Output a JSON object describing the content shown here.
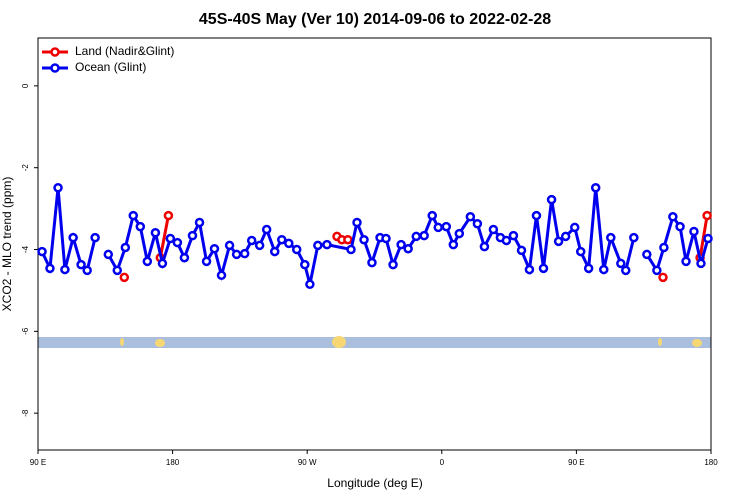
{
  "chart_data": {
    "type": "line",
    "title": "45S-40S May (Ver 10)   2014-09-06 to 2022-02-28",
    "x_label": "Longitude (deg E)",
    "y_label": "XCO2 - MLO trend (ppm)",
    "xlim": [
      90,
      540
    ],
    "xticks": [
      {
        "value": 90,
        "label": "90 E"
      },
      {
        "value": 180,
        "label": "180"
      },
      {
        "value": 270,
        "label": "90 W"
      },
      {
        "value": 360,
        "label": "0"
      },
      {
        "value": 450,
        "label": "90 E"
      },
      {
        "value": 540,
        "label": "180"
      }
    ],
    "ylim": [
      -8.9,
      1.17
    ],
    "yticks": [
      0,
      -2,
      -4,
      -6,
      -8
    ],
    "legend": "top-left",
    "series": [
      {
        "name": "Land (Nadir&Glint)",
        "color": "#ee0000",
        "x": [
          147.7,
          null,
          171.8,
          177.2,
          null,
          289.9,
          293.2,
          297.2,
          null,
          507.9,
          null,
          532.7,
          537.4
        ],
        "values": [
          -4.68,
          null,
          -4.2,
          -3.17,
          null,
          -3.68,
          -3.76,
          -3.76,
          null,
          -4.68,
          null,
          -4.2,
          -3.17
        ]
      },
      {
        "name": "Ocean (Glint)",
        "color": "#0000ee",
        "x": [
          92.7,
          98,
          103.4,
          108,
          113.5,
          118.8,
          122.9,
          128.2,
          null,
          137,
          143,
          148.4,
          153.7,
          158.4,
          163.1,
          168.5,
          173.2,
          178.5,
          183.2,
          187.9,
          193.3,
          198,
          202.7,
          208,
          212.7,
          218.1,
          222.8,
          228.2,
          232.9,
          238.2,
          242.9,
          248.3,
          253,
          257.7,
          263,
          268.4,
          271.8,
          277.1,
          283.2,
          299.3,
          303.3,
          308,
          313.3,
          318.7,
          322.7,
          327.4,
          332.8,
          337.5,
          342.9,
          348.2,
          353.6,
          357.6,
          363,
          367.7,
          371.7,
          379.1,
          383.8,
          388.5,
          394.5,
          399.2,
          403.2,
          407.9,
          413.3,
          418.6,
          423.3,
          428,
          433.4,
          438.1,
          442.8,
          448.9,
          452.9,
          458.2,
          462.9,
          468.3,
          473,
          479.7,
          483,
          488.4,
          null,
          497.1,
          503.8,
          508.5,
          514.5,
          519.3,
          523.3,
          528.6,
          533.3,
          538
        ],
        "values": [
          -4.05,
          -4.46,
          -2.49,
          -4.49,
          -3.71,
          -4.37,
          -4.51,
          -3.71,
          null,
          -4.12,
          -4.51,
          -3.95,
          -3.17,
          -3.44,
          -4.29,
          -3.59,
          -4.34,
          -3.73,
          -3.83,
          -4.2,
          -3.66,
          -3.34,
          -4.29,
          -3.98,
          -4.63,
          -3.9,
          -4.12,
          -4.1,
          -3.78,
          -3.9,
          -3.51,
          -4.05,
          -3.76,
          -3.85,
          -4,
          -4.37,
          -4.85,
          -3.9,
          -3.88,
          -4,
          -3.34,
          -3.76,
          -4.32,
          -3.71,
          -3.73,
          -4.37,
          -3.88,
          -3.98,
          -3.68,
          -3.66,
          -3.17,
          -3.46,
          -3.44,
          -3.88,
          -3.61,
          -3.2,
          -3.37,
          -3.93,
          -3.51,
          -3.71,
          -3.78,
          -3.66,
          -4.02,
          -4.49,
          -3.17,
          -4.46,
          -2.78,
          -3.8,
          -3.68,
          -3.46,
          -4.05,
          -4.46,
          -2.49,
          -4.49,
          -3.71,
          -4.34,
          -4.51,
          -3.71,
          null,
          -4.12,
          -4.51,
          -3.95,
          -3.2,
          -3.44,
          -4.29,
          -3.56,
          -4.34,
          -3.73
        ]
      }
    ]
  }
}
